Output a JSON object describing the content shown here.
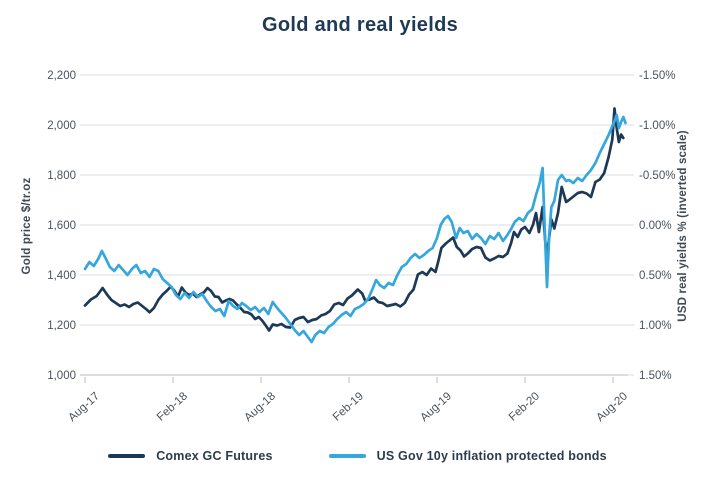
{
  "title": "Gold and real yields",
  "colors": {
    "background": "#ffffff",
    "title_text": "#1e3a54",
    "axis_text": "#49525c",
    "gridline": "#d9dcdf",
    "axis_line": "#c3c9cf",
    "series_gold": "#1c3a58",
    "series_yield": "#35a7dc"
  },
  "chart_data": {
    "type": "line",
    "title": "Gold and real yields",
    "grid": "horizontal",
    "legend_position": "bottom",
    "x_axis": {
      "unit": "months since Aug-2017",
      "tick_labels": [
        "Aug-17",
        "Feb-18",
        "Aug-18",
        "Feb-19",
        "Aug-19",
        "Feb-20",
        "Aug-20"
      ],
      "tick_t": [
        0,
        6,
        12,
        18,
        24,
        30,
        36
      ],
      "range": [
        0,
        37
      ]
    },
    "y_left": {
      "label": "Gold price $/tr.oz",
      "tick_labels": [
        "2,200",
        "2,000",
        "1,800",
        "1,600",
        "1,400",
        "1,200",
        "1,000"
      ],
      "tick_values": [
        2200,
        2000,
        1800,
        1600,
        1400,
        1200,
        1000
      ],
      "range": [
        1000,
        2200
      ]
    },
    "y_right": {
      "label": "USD real yields % (inverted scale)",
      "inverted": true,
      "tick_labels": [
        "-1.50%",
        "-1.00%",
        "-0.50%",
        "0.00%",
        "0.50%",
        "1.00%",
        "1.50%"
      ],
      "tick_values": [
        -1.5,
        -1.0,
        -0.5,
        0.0,
        0.5,
        1.0,
        1.5
      ],
      "range": [
        -1.5,
        1.5
      ]
    },
    "series": [
      {
        "name": "Comex GC Futures",
        "axis": "left",
        "color": "#1c3a58",
        "points": [
          [
            0,
            1278
          ],
          [
            0.4,
            1302
          ],
          [
            0.8,
            1316
          ],
          [
            1.2,
            1348
          ],
          [
            1.5,
            1322
          ],
          [
            1.8,
            1300
          ],
          [
            2.1,
            1288
          ],
          [
            2.4,
            1276
          ],
          [
            2.7,
            1282
          ],
          [
            3,
            1272
          ],
          [
            3.3,
            1284
          ],
          [
            3.6,
            1290
          ],
          [
            3.9,
            1276
          ],
          [
            4.2,
            1262
          ],
          [
            4.4,
            1251
          ],
          [
            4.7,
            1268
          ],
          [
            5,
            1300
          ],
          [
            5.3,
            1322
          ],
          [
            5.6,
            1338
          ],
          [
            5.85,
            1354
          ],
          [
            6.1,
            1336
          ],
          [
            6.35,
            1314
          ],
          [
            6.6,
            1350
          ],
          [
            6.85,
            1330
          ],
          [
            7.1,
            1320
          ],
          [
            7.35,
            1326
          ],
          [
            7.6,
            1312
          ],
          [
            7.85,
            1322
          ],
          [
            8.1,
            1330
          ],
          [
            8.35,
            1348
          ],
          [
            8.6,
            1336
          ],
          [
            8.85,
            1314
          ],
          [
            9.1,
            1312
          ],
          [
            9.35,
            1290
          ],
          [
            9.6,
            1298
          ],
          [
            9.85,
            1304
          ],
          [
            10.1,
            1298
          ],
          [
            10.35,
            1282
          ],
          [
            10.6,
            1268
          ],
          [
            10.85,
            1252
          ],
          [
            11.1,
            1250
          ],
          [
            11.35,
            1242
          ],
          [
            11.6,
            1224
          ],
          [
            11.85,
            1232
          ],
          [
            12.1,
            1216
          ],
          [
            12.35,
            1196
          ],
          [
            12.55,
            1178
          ],
          [
            12.8,
            1202
          ],
          [
            13.1,
            1198
          ],
          [
            13.4,
            1204
          ],
          [
            13.7,
            1192
          ],
          [
            14,
            1190
          ],
          [
            14.3,
            1220
          ],
          [
            14.6,
            1228
          ],
          [
            14.9,
            1232
          ],
          [
            15.2,
            1212
          ],
          [
            15.5,
            1220
          ],
          [
            15.8,
            1224
          ],
          [
            16.1,
            1238
          ],
          [
            16.4,
            1244
          ],
          [
            16.7,
            1256
          ],
          [
            17,
            1282
          ],
          [
            17.3,
            1288
          ],
          [
            17.6,
            1280
          ],
          [
            17.9,
            1306
          ],
          [
            18.2,
            1318
          ],
          [
            18.6,
            1342
          ],
          [
            18.9,
            1326
          ],
          [
            19.1,
            1298
          ],
          [
            19.4,
            1302
          ],
          [
            19.7,
            1310
          ],
          [
            20,
            1292
          ],
          [
            20.3,
            1288
          ],
          [
            20.6,
            1276
          ],
          [
            20.9,
            1280
          ],
          [
            21.2,
            1284
          ],
          [
            21.5,
            1274
          ],
          [
            21.8,
            1288
          ],
          [
            22.1,
            1322
          ],
          [
            22.4,
            1342
          ],
          [
            22.7,
            1402
          ],
          [
            23,
            1412
          ],
          [
            23.3,
            1400
          ],
          [
            23.6,
            1426
          ],
          [
            23.9,
            1412
          ],
          [
            24.1,
            1458
          ],
          [
            24.3,
            1508
          ],
          [
            24.6,
            1526
          ],
          [
            24.85,
            1538
          ],
          [
            25.1,
            1550
          ],
          [
            25.35,
            1512
          ],
          [
            25.6,
            1498
          ],
          [
            25.85,
            1474
          ],
          [
            26.1,
            1486
          ],
          [
            26.4,
            1504
          ],
          [
            26.7,
            1512
          ],
          [
            27,
            1508
          ],
          [
            27.3,
            1470
          ],
          [
            27.6,
            1458
          ],
          [
            27.9,
            1466
          ],
          [
            28.2,
            1476
          ],
          [
            28.5,
            1472
          ],
          [
            28.8,
            1486
          ],
          [
            29.05,
            1528
          ],
          [
            29.25,
            1572
          ],
          [
            29.5,
            1552
          ],
          [
            29.75,
            1582
          ],
          [
            30,
            1592
          ],
          [
            30.3,
            1568
          ],
          [
            30.55,
            1602
          ],
          [
            30.75,
            1648
          ],
          [
            30.95,
            1572
          ],
          [
            31.2,
            1672
          ],
          [
            31.45,
            1482
          ],
          [
            31.6,
            1528
          ],
          [
            31.8,
            1622
          ],
          [
            32,
            1586
          ],
          [
            32.25,
            1648
          ],
          [
            32.5,
            1752
          ],
          [
            32.8,
            1692
          ],
          [
            33,
            1700
          ],
          [
            33.3,
            1714
          ],
          [
            33.6,
            1728
          ],
          [
            33.9,
            1732
          ],
          [
            34.2,
            1726
          ],
          [
            34.5,
            1712
          ],
          [
            34.8,
            1772
          ],
          [
            35.1,
            1782
          ],
          [
            35.4,
            1808
          ],
          [
            35.7,
            1872
          ],
          [
            35.95,
            1942
          ],
          [
            36.1,
            2066
          ],
          [
            36.25,
            1988
          ],
          [
            36.4,
            1932
          ],
          [
            36.55,
            1962
          ],
          [
            36.7,
            1948
          ]
        ]
      },
      {
        "name": "US Gov 10y inflation protected bonds",
        "axis": "right",
        "color": "#35a7dc",
        "points": [
          [
            0,
            0.44
          ],
          [
            0.3,
            0.37
          ],
          [
            0.6,
            0.41
          ],
          [
            0.9,
            0.34
          ],
          [
            1.15,
            0.26
          ],
          [
            1.4,
            0.33
          ],
          [
            1.7,
            0.42
          ],
          [
            2,
            0.46
          ],
          [
            2.3,
            0.4
          ],
          [
            2.6,
            0.45
          ],
          [
            2.9,
            0.5
          ],
          [
            3.2,
            0.44
          ],
          [
            3.5,
            0.4
          ],
          [
            3.8,
            0.48
          ],
          [
            4.1,
            0.46
          ],
          [
            4.4,
            0.52
          ],
          [
            4.7,
            0.44
          ],
          [
            5,
            0.46
          ],
          [
            5.3,
            0.54
          ],
          [
            5.6,
            0.58
          ],
          [
            5.9,
            0.62
          ],
          [
            6.2,
            0.7
          ],
          [
            6.5,
            0.74
          ],
          [
            6.8,
            0.68
          ],
          [
            7.1,
            0.73
          ],
          [
            7.4,
            0.67
          ],
          [
            7.7,
            0.72
          ],
          [
            8,
            0.69
          ],
          [
            8.3,
            0.76
          ],
          [
            8.6,
            0.82
          ],
          [
            8.9,
            0.86
          ],
          [
            9.2,
            0.84
          ],
          [
            9.5,
            0.91
          ],
          [
            9.8,
            0.76
          ],
          [
            10.1,
            0.81
          ],
          [
            10.4,
            0.84
          ],
          [
            10.7,
            0.78
          ],
          [
            11,
            0.81
          ],
          [
            11.3,
            0.85
          ],
          [
            11.6,
            0.82
          ],
          [
            11.9,
            0.87
          ],
          [
            12.2,
            0.83
          ],
          [
            12.5,
            0.89
          ],
          [
            12.8,
            0.77
          ],
          [
            13.1,
            0.83
          ],
          [
            13.4,
            0.88
          ],
          [
            13.7,
            0.93
          ],
          [
            14,
            0.99
          ],
          [
            14.3,
            1.05
          ],
          [
            14.6,
            1.1
          ],
          [
            14.9,
            1.06
          ],
          [
            15.2,
            1.12
          ],
          [
            15.45,
            1.17
          ],
          [
            15.7,
            1.1
          ],
          [
            16,
            1.06
          ],
          [
            16.3,
            1.08
          ],
          [
            16.6,
            1.02
          ],
          [
            16.9,
            0.99
          ],
          [
            17.2,
            0.94
          ],
          [
            17.5,
            0.9
          ],
          [
            17.8,
            0.87
          ],
          [
            18.1,
            0.91
          ],
          [
            18.4,
            0.84
          ],
          [
            18.7,
            0.82
          ],
          [
            19,
            0.79
          ],
          [
            19.3,
            0.74
          ],
          [
            19.6,
            0.64
          ],
          [
            19.85,
            0.55
          ],
          [
            20.1,
            0.6
          ],
          [
            20.4,
            0.63
          ],
          [
            20.7,
            0.58
          ],
          [
            21,
            0.6
          ],
          [
            21.3,
            0.5
          ],
          [
            21.6,
            0.42
          ],
          [
            21.9,
            0.39
          ],
          [
            22.2,
            0.33
          ],
          [
            22.5,
            0.29
          ],
          [
            22.8,
            0.33
          ],
          [
            23.1,
            0.3
          ],
          [
            23.4,
            0.26
          ],
          [
            23.7,
            0.23
          ],
          [
            24,
            0.13
          ],
          [
            24.25,
            0
          ],
          [
            24.5,
            -0.06
          ],
          [
            24.75,
            -0.09
          ],
          [
            25,
            -0.03
          ],
          [
            25.3,
            0.13
          ],
          [
            25.55,
            0.03
          ],
          [
            25.8,
            0.08
          ],
          [
            26.1,
            0.06
          ],
          [
            26.4,
            0.14
          ],
          [
            26.7,
            0.09
          ],
          [
            27,
            0.13
          ],
          [
            27.3,
            0.19
          ],
          [
            27.6,
            0.11
          ],
          [
            27.9,
            0.14
          ],
          [
            28.2,
            0.08
          ],
          [
            28.5,
            0.16
          ],
          [
            28.8,
            0.1
          ],
          [
            29.05,
            0.04
          ],
          [
            29.3,
            -0.03
          ],
          [
            29.6,
            -0.07
          ],
          [
            29.9,
            -0.04
          ],
          [
            30.2,
            -0.12
          ],
          [
            30.5,
            -0.16
          ],
          [
            30.75,
            -0.3
          ],
          [
            31,
            -0.42
          ],
          [
            31.2,
            -0.57
          ],
          [
            31.35,
            0.05
          ],
          [
            31.5,
            0.62
          ],
          [
            31.65,
            0.1
          ],
          [
            31.8,
            -0.18
          ],
          [
            32,
            -0.24
          ],
          [
            32.25,
            -0.45
          ],
          [
            32.5,
            -0.5
          ],
          [
            32.8,
            -0.44
          ],
          [
            33,
            -0.45
          ],
          [
            33.3,
            -0.42
          ],
          [
            33.6,
            -0.47
          ],
          [
            33.9,
            -0.44
          ],
          [
            34.2,
            -0.5
          ],
          [
            34.5,
            -0.55
          ],
          [
            34.8,
            -0.62
          ],
          [
            35.1,
            -0.72
          ],
          [
            35.4,
            -0.81
          ],
          [
            35.7,
            -0.9
          ],
          [
            35.95,
            -0.99
          ],
          [
            36.1,
            -1.04
          ],
          [
            36.25,
            -1.1
          ],
          [
            36.4,
            -0.97
          ],
          [
            36.55,
            -1.03
          ],
          [
            36.7,
            -1.08
          ],
          [
            36.85,
            -1.02
          ]
        ]
      }
    ]
  }
}
